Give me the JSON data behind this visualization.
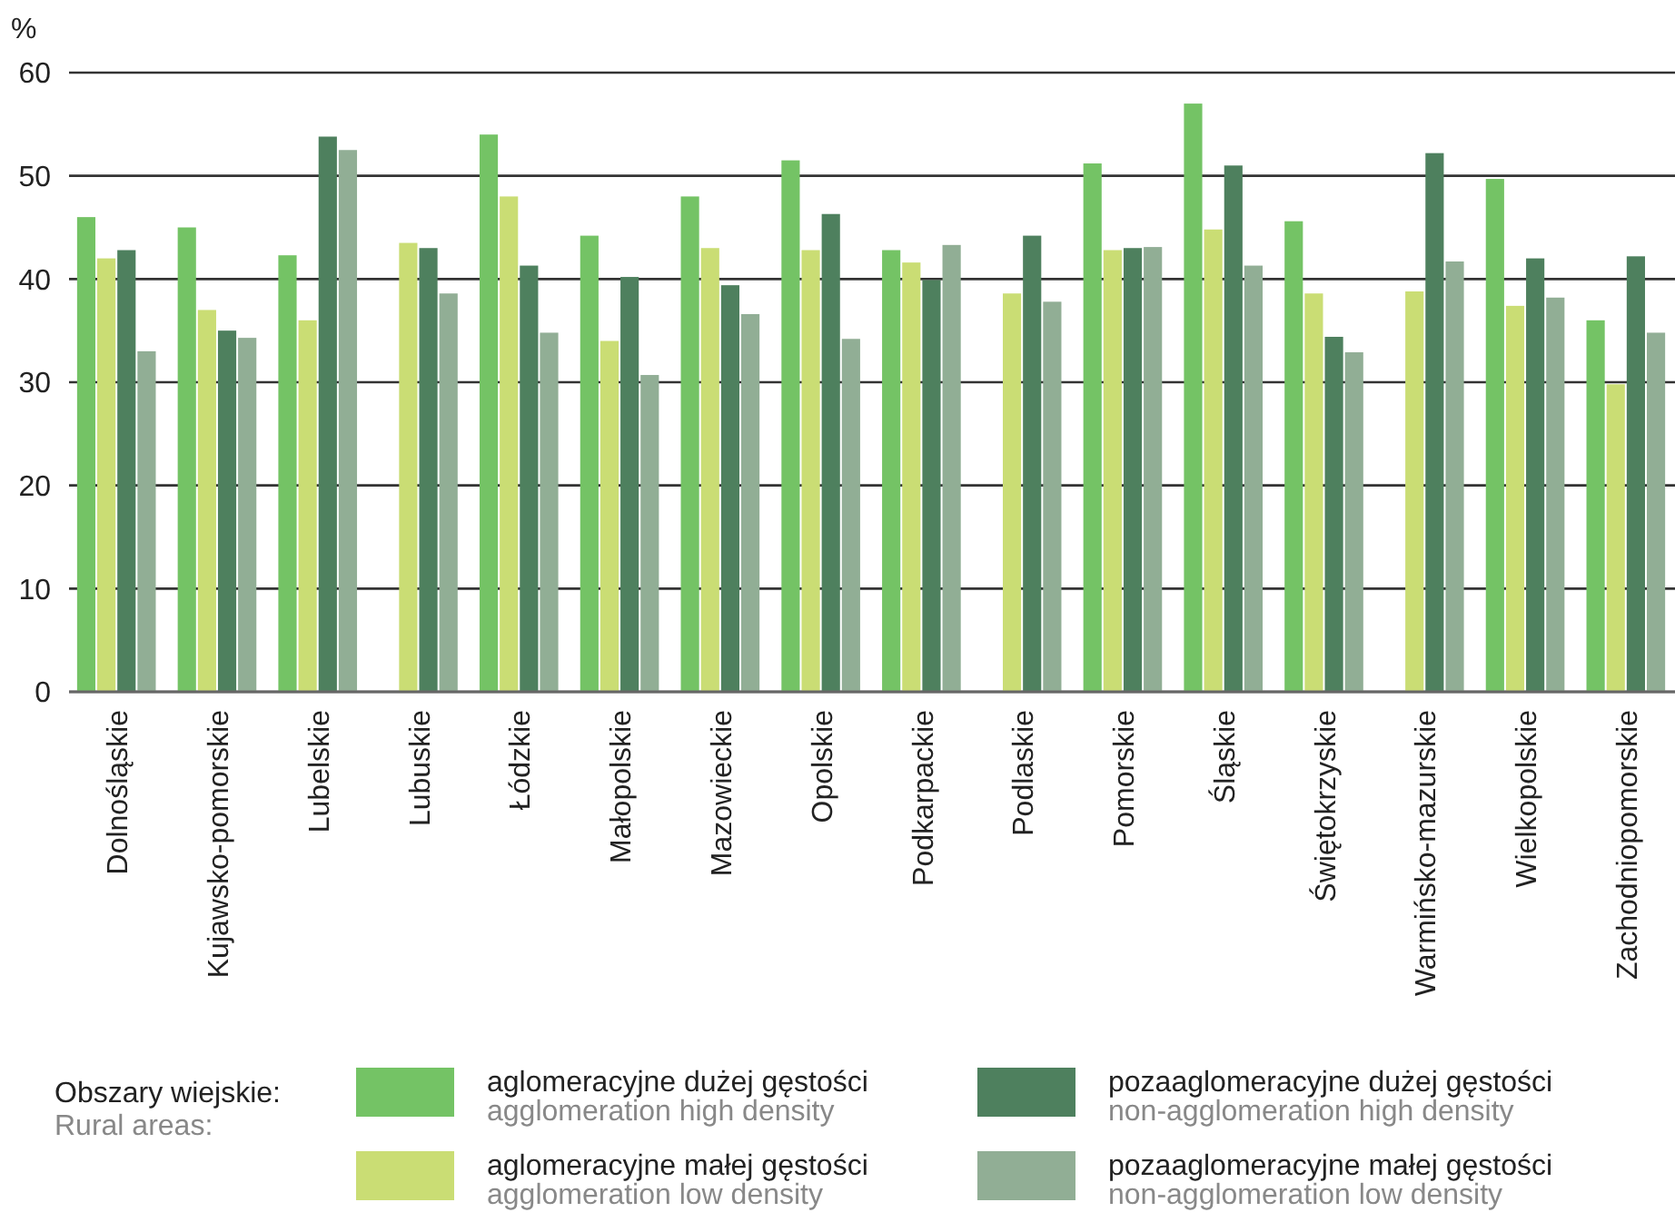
{
  "chart_data": {
    "type": "bar",
    "ylabel": "%",
    "legend_title": "Obszary wiejskie:\nRural areas:",
    "legend": "bottom",
    "grid": "y",
    "ylim": [
      0,
      60
    ],
    "yticks": [
      0,
      10,
      20,
      30,
      40,
      50,
      60
    ],
    "categories": [
      "Dolnośląskie",
      "Kujawsko-pomorskie",
      "Lubelskie",
      "Lubuskie",
      "Łódzkie",
      "Małopolskie",
      "Mazowieckie",
      "Opolskie",
      "Podkarpackie",
      "Podlaskie",
      "Pomorskie",
      "Śląskie",
      "Świętokrzyskie",
      "Warmińsko-mazurskie",
      "Wielkopolskie",
      "Zachodniopomorskie"
    ],
    "series": [
      {
        "name": "aglomeracyjne dużej gęstości\nagglomeration high density",
        "color": "#74c365",
        "values": [
          46,
          45,
          42.3,
          null,
          54,
          44.2,
          48,
          51.5,
          42.8,
          null,
          51.2,
          57,
          45.6,
          null,
          49.7,
          36
        ]
      },
      {
        "name": "aglomeracyjne małej gęstości\nagglomeration low density",
        "color": "#cadd74",
        "values": [
          42,
          37,
          36,
          43.5,
          48,
          34,
          43,
          42.8,
          41.6,
          38.6,
          42.8,
          44.8,
          38.6,
          38.8,
          37.4,
          29.8
        ]
      },
      {
        "name": "pozaaglomeracyjne dużej gęstości\nnon-agglomeration high density",
        "color": "#4e805e",
        "values": [
          42.8,
          35,
          53.8,
          43,
          41.3,
          40.2,
          39.4,
          46.3,
          39.9,
          44.2,
          43,
          51,
          34.4,
          52.2,
          42,
          42.2
        ]
      },
      {
        "name": "pozaaglomeracyjne małej gęstości\nnon-agglomeration low density",
        "color": "#91ae95",
        "values": [
          33,
          34.3,
          52.5,
          38.6,
          34.8,
          30.7,
          36.6,
          34.2,
          43.3,
          37.8,
          43.1,
          41.3,
          32.9,
          41.7,
          38.2,
          34.8
        ]
      }
    ]
  }
}
